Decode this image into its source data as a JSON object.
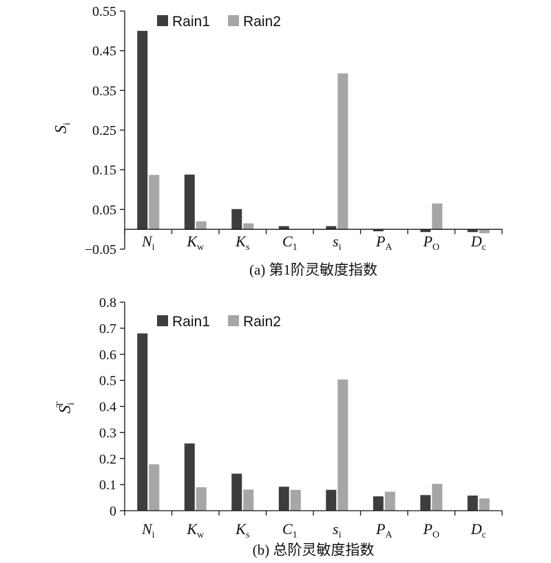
{
  "chart_data": [
    {
      "type": "bar",
      "caption": "(a) 第1阶灵敏度指数",
      "ylabel_main": "S",
      "ylabel_sub": "i",
      "ylabel_sup": "",
      "ylim": [
        -0.05,
        0.55
      ],
      "yticks": [
        "0.55",
        "0.45",
        "0.35",
        "0.25",
        "0.15",
        "0.05",
        "−0.05"
      ],
      "categories": [
        {
          "main": "N",
          "sub": "i"
        },
        {
          "main": "K",
          "sub": "w"
        },
        {
          "main": "K",
          "sub": "s"
        },
        {
          "main": "C",
          "sub": "1"
        },
        {
          "main": "s",
          "sub": "i"
        },
        {
          "main": "P",
          "sub": "A"
        },
        {
          "main": "P",
          "sub": "O"
        },
        {
          "main": "D",
          "sub": "c"
        }
      ],
      "series": [
        {
          "name": "Rain1",
          "color": "#3d3d40",
          "values": [
            0.5,
            0.138,
            0.051,
            0.008,
            0.008,
            -0.005,
            -0.007,
            -0.007
          ]
        },
        {
          "name": "Rain2",
          "color": "#a6a6a9",
          "values": [
            0.137,
            0.02,
            0.015,
            0.0,
            0.393,
            0.0,
            0.065,
            -0.01
          ]
        }
      ],
      "legend": "top"
    },
    {
      "type": "bar",
      "caption": "(b) 总阶灵敏度指数",
      "ylabel_main": "S",
      "ylabel_sub": "i",
      "ylabel_sup": "T",
      "ylim": [
        0,
        0.8
      ],
      "yticks": [
        "0.8",
        "0.7",
        "0.6",
        "0.5",
        "0.4",
        "0.3",
        "0.2",
        "0.1",
        "0"
      ],
      "categories": [
        {
          "main": "N",
          "sub": "i"
        },
        {
          "main": "K",
          "sub": "w"
        },
        {
          "main": "K",
          "sub": "s"
        },
        {
          "main": "C",
          "sub": "1"
        },
        {
          "main": "s",
          "sub": "i"
        },
        {
          "main": "P",
          "sub": "A"
        },
        {
          "main": "P",
          "sub": "O"
        },
        {
          "main": "D",
          "sub": "c"
        }
      ],
      "series": [
        {
          "name": "Rain1",
          "color": "#3d3d40",
          "values": [
            0.68,
            0.258,
            0.142,
            0.092,
            0.08,
            0.055,
            0.06,
            0.058
          ]
        },
        {
          "name": "Rain2",
          "color": "#a6a6a9",
          "values": [
            0.178,
            0.09,
            0.081,
            0.08,
            0.503,
            0.073,
            0.103,
            0.047
          ]
        }
      ],
      "legend": "top"
    }
  ]
}
